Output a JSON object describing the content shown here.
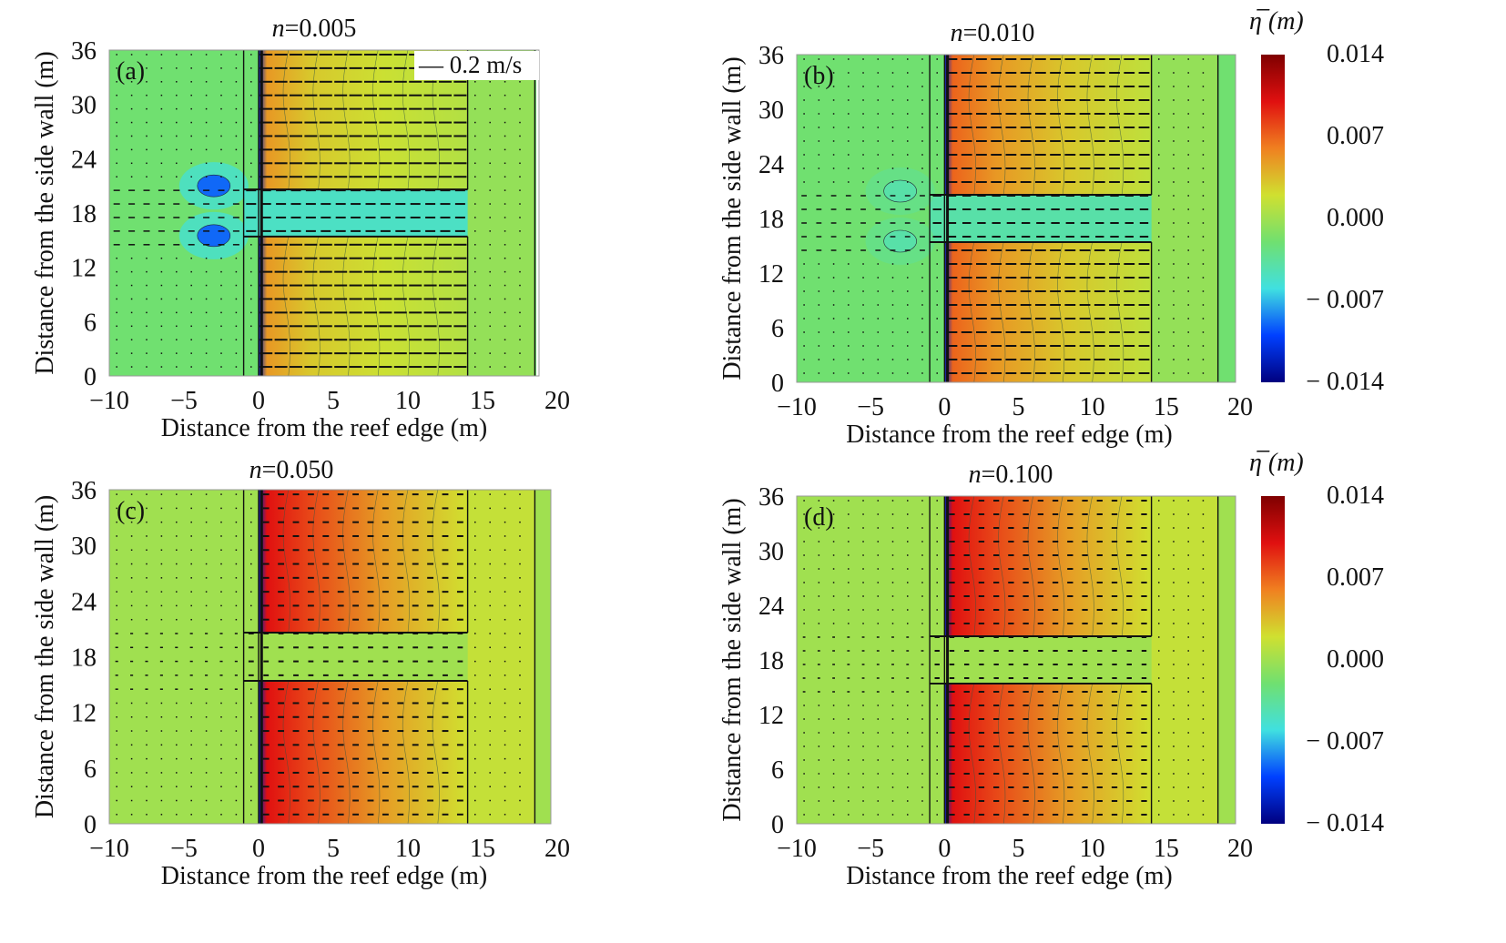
{
  "chart_data": {
    "type": "heatmap",
    "figure_kind": "contour plots of mean water level with velocity vectors",
    "xlabel": "Distance from the reef edge (m)",
    "ylabel": "Distance from the side wall (m)",
    "xlim": [
      -10,
      20
    ],
    "ylim": [
      0,
      36
    ],
    "xticks": [
      "−10",
      "−5",
      "0",
      "5",
      "10",
      "15",
      "20"
    ],
    "yticks": [
      "0",
      "6",
      "12",
      "18",
      "24",
      "30",
      "36"
    ],
    "colorbar": {
      "label": "η̅ (m)",
      "range": [
        -0.014,
        0.014
      ],
      "ticks": [
        "0.014",
        "0.007",
        "0.000",
        "− 0.007",
        "− 0.014"
      ],
      "colormap": [
        "#00007f",
        "#0040ff",
        "#40e0e0",
        "#70e070",
        "#d0e030",
        "#f08020",
        "#e01010",
        "#7f0000"
      ]
    },
    "vector_scale_label": "— 0.2 m/s",
    "panels": [
      {
        "label": "(a)",
        "title_var": "n",
        "title_value": "=0.005",
        "lagoon_eta": 0.003,
        "channel_eta": -0.005,
        "offshore_eta": -0.002,
        "vortex_eta": -0.009,
        "flow_strength": 1.0
      },
      {
        "label": "(b)",
        "title_var": "n",
        "title_value": "=0.010",
        "lagoon_eta": 0.005,
        "channel_eta": -0.004,
        "offshore_eta": -0.002,
        "vortex_eta": -0.004,
        "flow_strength": 0.8
      },
      {
        "label": "(c)",
        "title_var": "n",
        "title_value": "=0.050",
        "lagoon_eta": 0.008,
        "channel_eta": 0.0,
        "offshore_eta": 0.0,
        "vortex_eta": 0.0,
        "flow_strength": 0.35
      },
      {
        "label": "(d)",
        "title_var": "n",
        "title_value": "=0.100",
        "lagoon_eta": 0.008,
        "channel_eta": 0.0,
        "offshore_eta": 0.0,
        "vortex_eta": 0.0,
        "flow_strength": 0.3
      }
    ]
  }
}
